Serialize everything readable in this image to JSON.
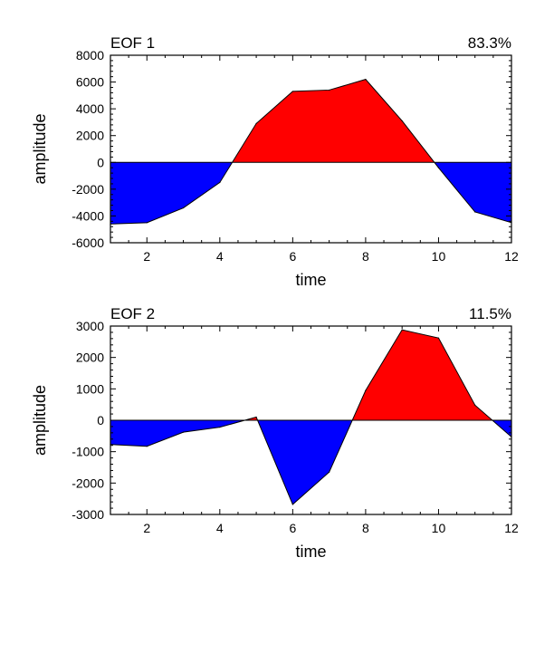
{
  "chart_data": [
    {
      "type": "area",
      "title": "EOF 1",
      "percent_label": "83.3%",
      "xlabel": "time",
      "ylabel": "amplitude",
      "x": [
        1,
        2,
        3,
        4,
        5,
        6,
        7,
        8,
        9,
        10,
        11,
        12
      ],
      "values": [
        -4600,
        -4500,
        -3400,
        -1500,
        2900,
        5300,
        5400,
        6200,
        3100,
        -400,
        -3700,
        -4500
      ],
      "xlim": [
        1,
        12
      ],
      "ylim": [
        -6000,
        8000
      ],
      "xticks": [
        2,
        4,
        6,
        8,
        10,
        12
      ],
      "yticks": [
        -6000,
        -4000,
        -2000,
        0,
        2000,
        4000,
        6000,
        8000
      ],
      "positive_color": "#ff0000",
      "negative_color": "#0000ff",
      "grid": false
    },
    {
      "type": "area",
      "title": "EOF 2",
      "percent_label": "11.5%",
      "xlabel": "time",
      "ylabel": "amplitude",
      "x": [
        1,
        2,
        3,
        4,
        5,
        6,
        7,
        8,
        9,
        10,
        11,
        12
      ],
      "values": [
        -770,
        -830,
        -380,
        -220,
        100,
        -2680,
        -1650,
        950,
        2880,
        2620,
        480,
        -530
      ],
      "xlim": [
        1,
        12
      ],
      "ylim": [
        -3000,
        3000
      ],
      "xticks": [
        2,
        4,
        6,
        8,
        10,
        12
      ],
      "yticks": [
        -3000,
        -2000,
        -1000,
        0,
        1000,
        2000,
        3000
      ],
      "positive_color": "#ff0000",
      "negative_color": "#0000ff",
      "grid": false
    }
  ]
}
